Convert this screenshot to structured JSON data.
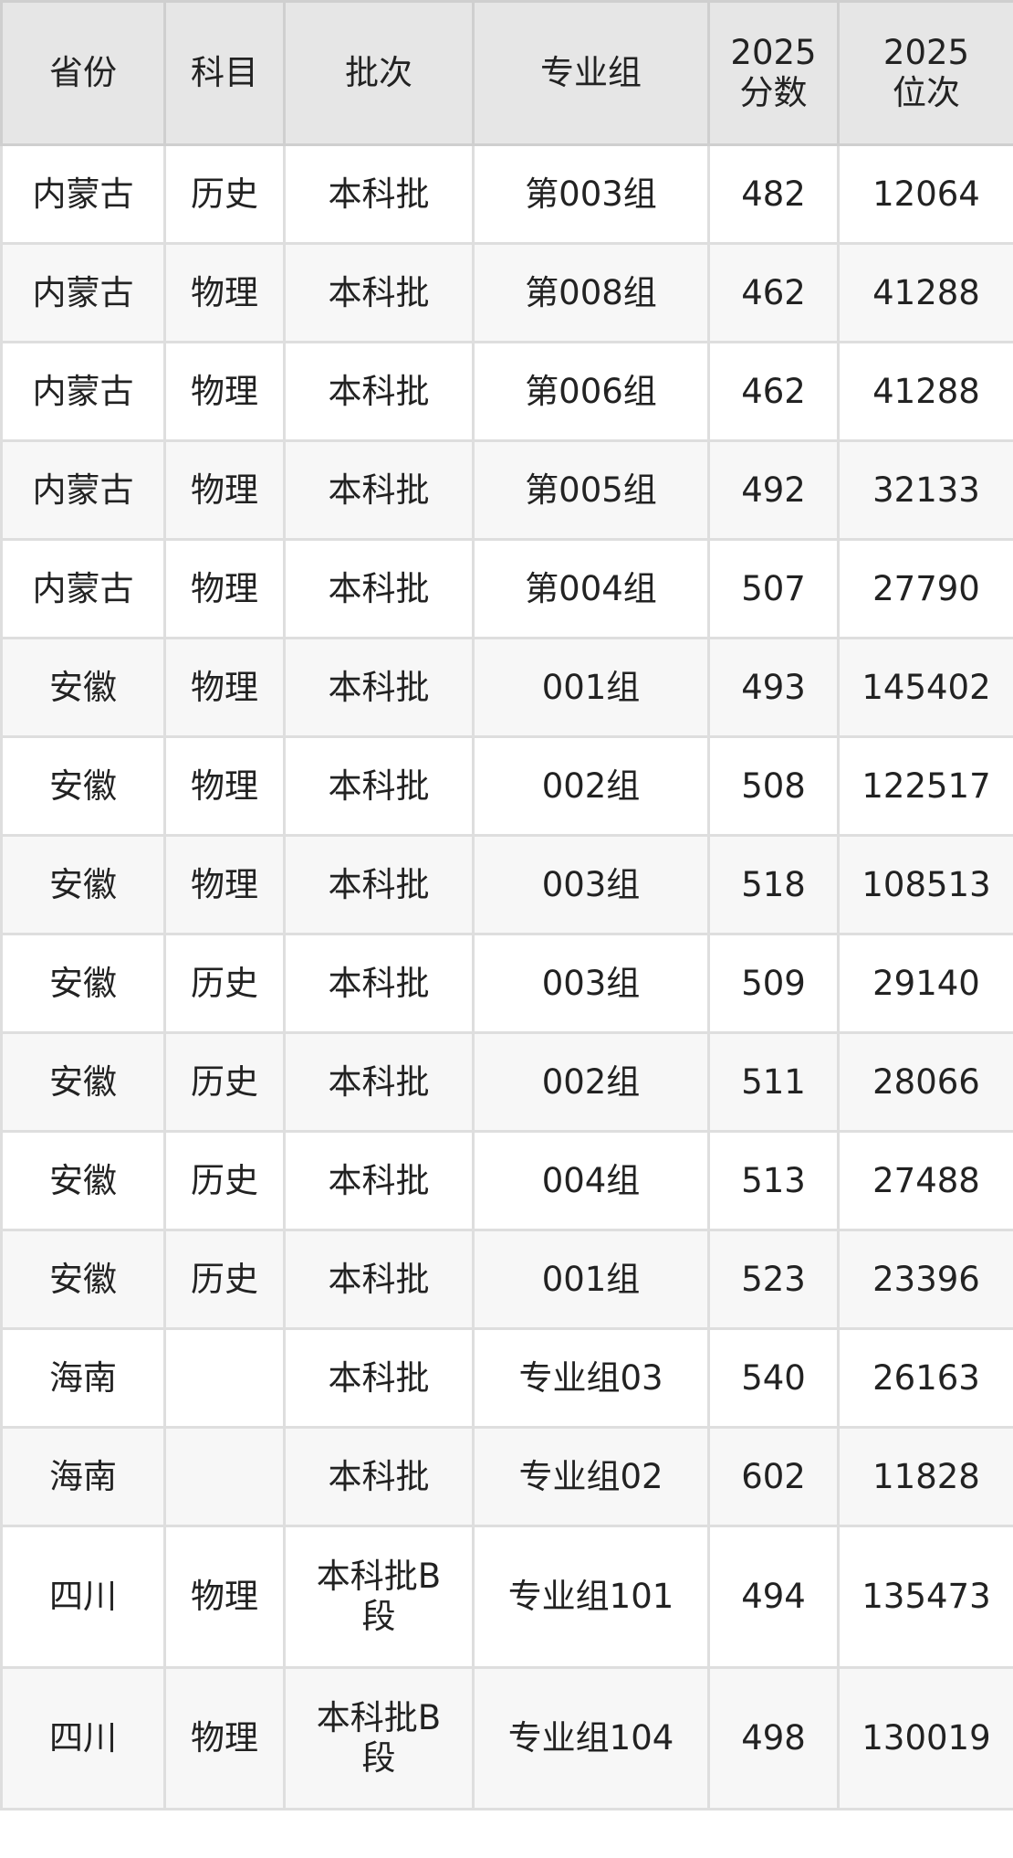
{
  "headers": [
    "省份",
    "科目",
    "批次",
    "专业组",
    "2025\n分数",
    "2025\n位次"
  ],
  "rows": [
    [
      "内蒙古",
      "历史",
      "本科批",
      "第003组",
      "482",
      "12064"
    ],
    [
      "内蒙古",
      "物理",
      "本科批",
      "第008组",
      "462",
      "41288"
    ],
    [
      "内蒙古",
      "物理",
      "本科批",
      "第006组",
      "462",
      "41288"
    ],
    [
      "内蒙古",
      "物理",
      "本科批",
      "第005组",
      "492",
      "32133"
    ],
    [
      "内蒙古",
      "物理",
      "本科批",
      "第004组",
      "507",
      "27790"
    ],
    [
      "安徽",
      "物理",
      "本科批",
      "001组",
      "493",
      "145402"
    ],
    [
      "安徽",
      "物理",
      "本科批",
      "002组",
      "508",
      "122517"
    ],
    [
      "安徽",
      "物理",
      "本科批",
      "003组",
      "518",
      "108513"
    ],
    [
      "安徽",
      "历史",
      "本科批",
      "003组",
      "509",
      "29140"
    ],
    [
      "安徽",
      "历史",
      "本科批",
      "002组",
      "511",
      "28066"
    ],
    [
      "安徽",
      "历史",
      "本科批",
      "004组",
      "513",
      "27488"
    ],
    [
      "安徽",
      "历史",
      "本科批",
      "001组",
      "523",
      "23396"
    ],
    [
      "海南",
      "",
      "本科批",
      "专业组03",
      "540",
      "26163"
    ],
    [
      "海南",
      "",
      "本科批",
      "专业组02",
      "602",
      "11828"
    ],
    [
      "四川",
      "物理",
      "本科批B段",
      "专业组101",
      "494",
      "135473"
    ],
    [
      "四川",
      "物理",
      "本科批B段",
      "专业组104",
      "498",
      "130019"
    ]
  ]
}
